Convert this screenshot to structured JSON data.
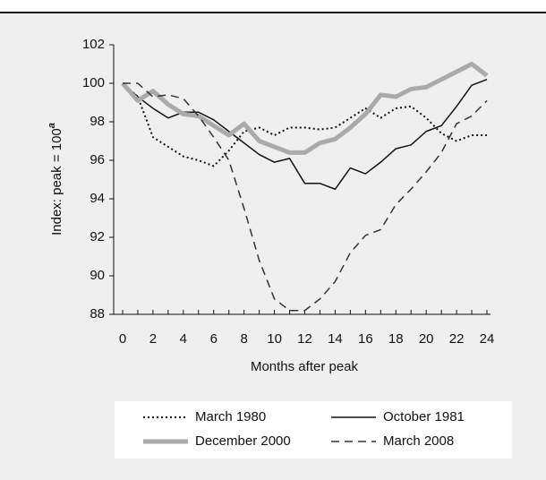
{
  "chart_data": {
    "type": "line",
    "ylabel": "Index: peak = 100",
    "ylabel_superscript": "a",
    "xlabel": "Months after peak",
    "x": [
      0,
      1,
      2,
      3,
      4,
      5,
      6,
      7,
      8,
      9,
      10,
      11,
      12,
      13,
      14,
      15,
      16,
      17,
      18,
      19,
      20,
      21,
      22,
      23,
      24
    ],
    "xlim": [
      0,
      24
    ],
    "xticks": [
      0,
      2,
      4,
      6,
      8,
      10,
      12,
      14,
      16,
      18,
      20,
      22,
      24
    ],
    "xminor_ticks": [
      1,
      3,
      5,
      7,
      9,
      11,
      13,
      15,
      17,
      19,
      21,
      23
    ],
    "ylim": [
      88,
      102
    ],
    "yticks": [
      88,
      90,
      92,
      94,
      96,
      98,
      100,
      102
    ],
    "grid": false,
    "series": [
      {
        "name": "March 1980",
        "color": "#111111",
        "style": "dotted",
        "values": [
          100,
          99.3,
          97.2,
          96.7,
          96.2,
          96.0,
          95.7,
          96.5,
          97.5,
          97.7,
          97.3,
          97.7,
          97.7,
          97.6,
          97.7,
          98.2,
          98.7,
          98.2,
          98.7,
          98.8,
          98.2,
          97.4,
          97.0,
          97.3,
          97.3
        ]
      },
      {
        "name": "October 1981",
        "color": "#111111",
        "style": "solid",
        "values": [
          100,
          99.3,
          98.7,
          98.2,
          98.5,
          98.5,
          98.1,
          97.5,
          96.9,
          96.3,
          95.9,
          96.1,
          94.8,
          94.8,
          94.5,
          95.6,
          95.3,
          95.9,
          96.6,
          96.8,
          97.5,
          97.8,
          98.8,
          99.9,
          100.2
        ]
      },
      {
        "name": "December 2000",
        "color": "#aaaaaa",
        "style": "thick",
        "values": [
          100,
          99.1,
          99.6,
          98.9,
          98.4,
          98.3,
          97.8,
          97.3,
          97.9,
          97.0,
          96.7,
          96.4,
          96.4,
          96.9,
          97.1,
          97.7,
          98.4,
          99.4,
          99.3,
          99.7,
          99.8,
          100.2,
          100.6,
          101.0,
          100.4
        ]
      },
      {
        "name": "March 2008",
        "color": "#333333",
        "style": "dashed",
        "values": [
          100,
          100.0,
          99.3,
          99.4,
          99.2,
          98.3,
          97.2,
          96.0,
          93.5,
          90.8,
          88.8,
          88.2,
          88.2,
          88.8,
          89.7,
          91.2,
          92.1,
          92.4,
          93.7,
          94.5,
          95.4,
          96.4,
          97.9,
          98.3,
          99.1
        ]
      }
    ]
  }
}
